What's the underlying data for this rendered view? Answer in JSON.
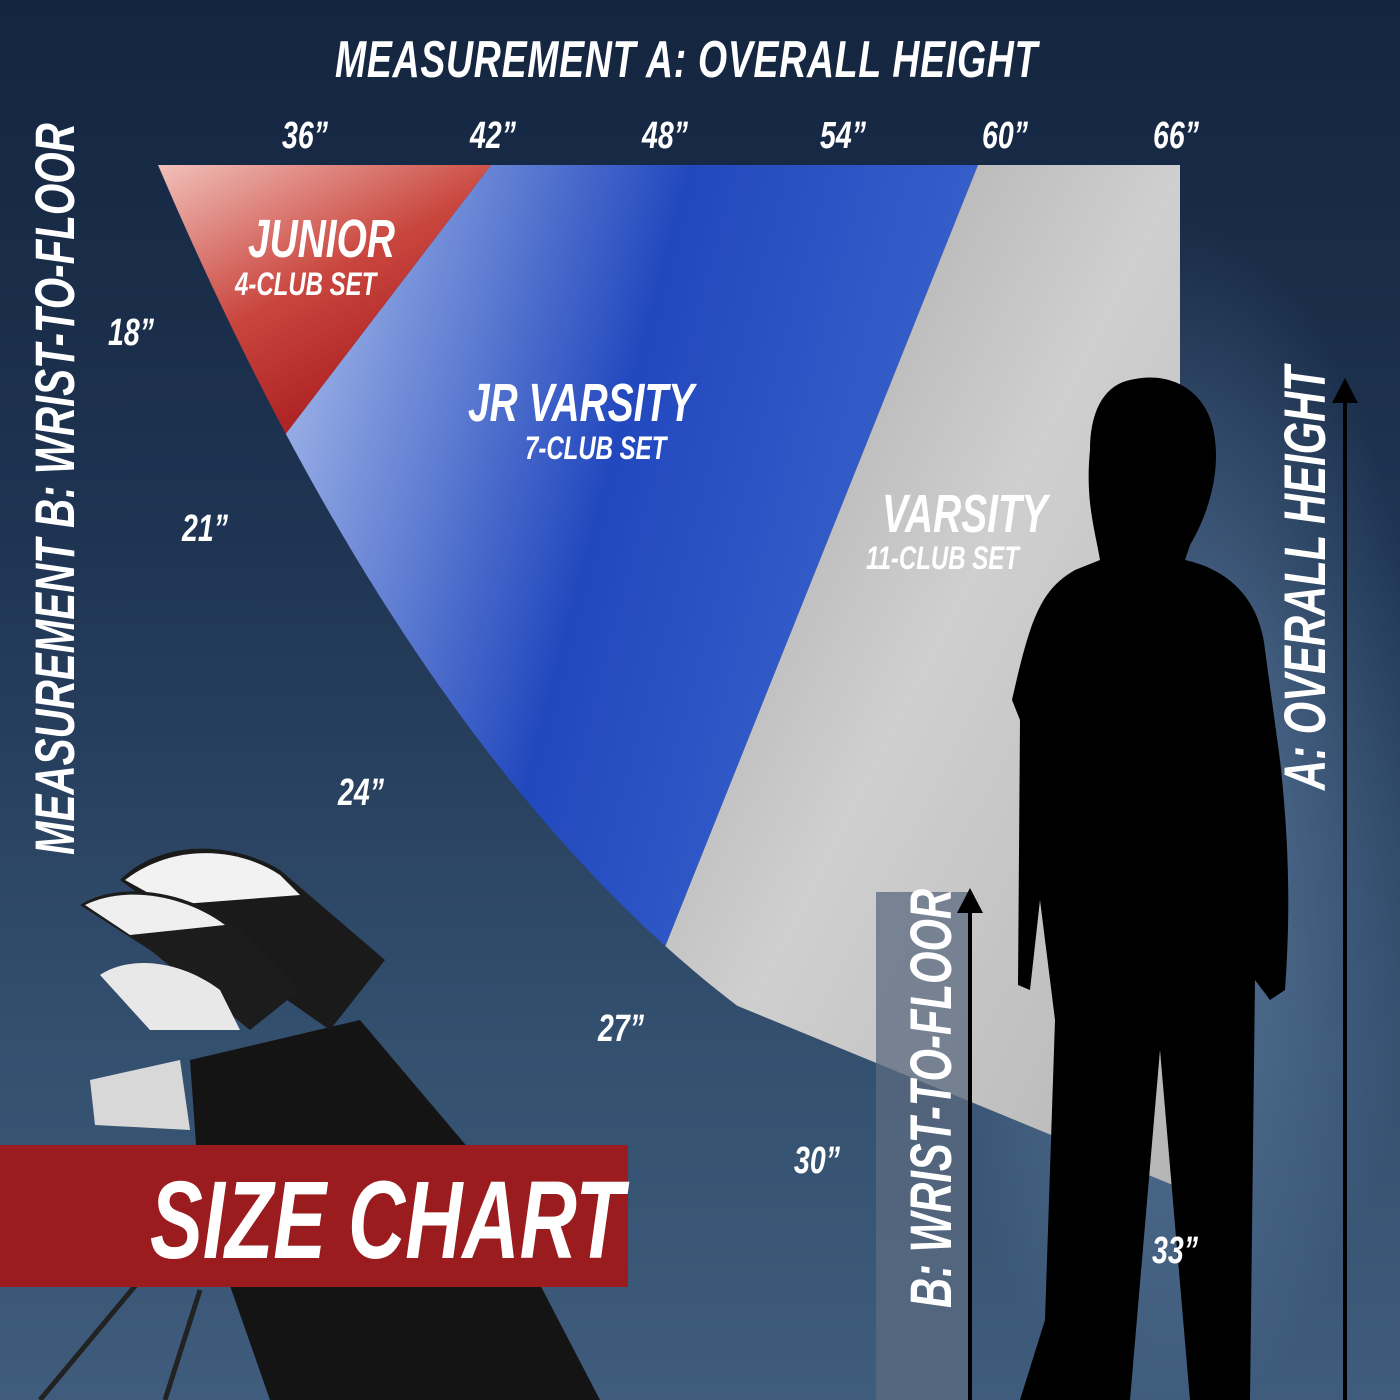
{
  "title": "MEASUREMENT A: OVERALL HEIGHT",
  "side_title": "MEASUREMENT B: WRIST-TO-FLOOR",
  "height_ticks": [
    "36”",
    "42”",
    "48”",
    "54”",
    "60”",
    "66”"
  ],
  "wrist_ticks": [
    "18”",
    "21”",
    "24”",
    "27”",
    "30”",
    "33”"
  ],
  "zones": [
    {
      "name": "JUNIOR",
      "set": "4-CLUB SET",
      "color": "#b01e22"
    },
    {
      "name": "JR VARSITY",
      "set": "7-CLUB SET",
      "color": "#2448bb"
    },
    {
      "name": "VARSITY",
      "set": "11-CLUB SET",
      "color": "#a8a8a8"
    }
  ],
  "arrow_a_label": "A: OVERALL HEIGHT",
  "arrow_b_label": "B: WRIST-TO-FLOOR",
  "banner": "SIZE CHART"
}
